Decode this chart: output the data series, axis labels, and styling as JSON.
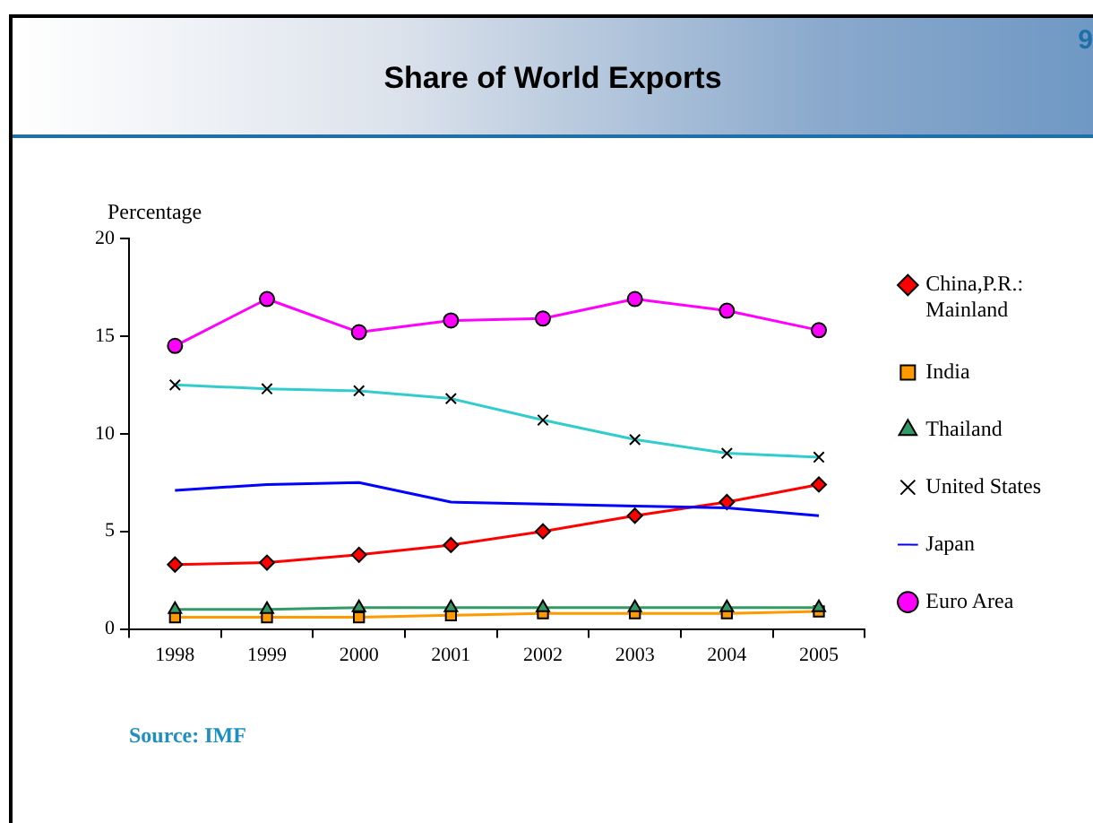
{
  "chart_data": {
    "type": "line",
    "title": "Share of World Exports",
    "ylabel": "Percentage",
    "annotations": [
      "9",
      "Source: IMF"
    ],
    "categories": [
      "1998",
      "1999",
      "2000",
      "2001",
      "2002",
      "2003",
      "2004",
      "2005"
    ],
    "ylim": [
      0,
      20
    ],
    "yticks": [
      0,
      5,
      10,
      15,
      20
    ],
    "grid": false,
    "legend": "right",
    "line_style": "solid",
    "series": [
      {
        "name": "China,P.R.: Mainland",
        "color": "#ff0000",
        "marker": "diamond",
        "values": [
          3.3,
          3.4,
          3.8,
          4.3,
          5.0,
          5.8,
          6.5,
          7.4
        ]
      },
      {
        "name": "India",
        "color": "#ff9900",
        "marker": "square",
        "values": [
          0.6,
          0.6,
          0.6,
          0.7,
          0.8,
          0.8,
          0.8,
          0.9
        ]
      },
      {
        "name": "Thailand",
        "color": "#339966",
        "marker": "triangle",
        "values": [
          1.0,
          1.0,
          1.1,
          1.1,
          1.1,
          1.1,
          1.1,
          1.1
        ]
      },
      {
        "name": "United States",
        "color": "#33cccc",
        "marker": "cross",
        "values": [
          12.5,
          12.3,
          12.2,
          11.8,
          10.7,
          9.7,
          9.0,
          8.8
        ]
      },
      {
        "name": "Japan",
        "color": "#0000ff",
        "marker": "none",
        "values": [
          7.1,
          7.4,
          7.5,
          6.5,
          6.4,
          6.3,
          6.2,
          5.8
        ]
      },
      {
        "name": "Euro Area",
        "color": "#ff00ff",
        "marker": "circle",
        "values": [
          14.5,
          16.9,
          15.2,
          15.8,
          15.9,
          16.9,
          16.3,
          15.3
        ]
      }
    ]
  }
}
